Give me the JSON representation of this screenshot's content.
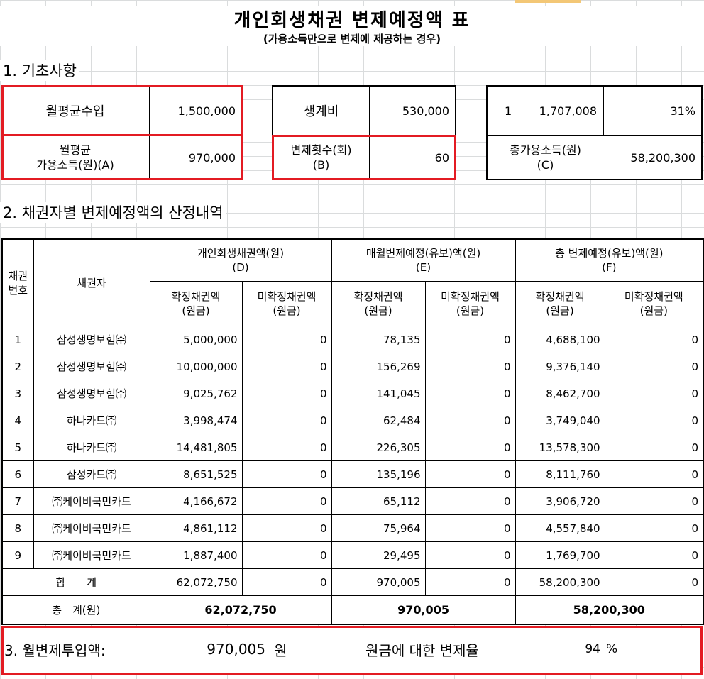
{
  "title": "개인회생채권 변제예정액 표",
  "subtitle": "(가용소득만으로 변제에 제공하는 경우)",
  "section1": {
    "heading": "1. 기초사항",
    "monthly_income_label": "월평균수입",
    "monthly_income_value": "1,500,000",
    "avg_disposable_label_1": "월평균",
    "avg_disposable_label_2": "가용소득(원)(A)",
    "avg_disposable_value": "970,000",
    "living_cost_label": "생계비",
    "living_cost_value": "530,000",
    "repay_count_label_1": "변제횟수(회)",
    "repay_count_label_2": "(B)",
    "repay_count_value": "60",
    "ratio_index": "1",
    "ratio_amount": "1,707,008",
    "ratio_percent": "31%",
    "total_disposable_label_1": "총가용소득(원)",
    "total_disposable_label_2": "(C)",
    "total_disposable_value": "58,200,300"
  },
  "section2": {
    "heading": "2. 채권자별 변제예정액의 산정내역",
    "headers": {
      "no_1": "채권",
      "no_2": "번호",
      "creditor": "채권자",
      "group_d_1": "개인회생채권액(원)",
      "group_d_2": "(D)",
      "group_e_1": "매월변제예정(유보)액(원)",
      "group_e_2": "(E)",
      "group_f_1": "총 변제예정(유보)액(원)",
      "group_f_2": "(F)",
      "confirmed_1": "확정채권액",
      "confirmed_2": "(원금)",
      "unconfirmed_1": "미확정채권액",
      "unconfirmed_2": "(원금)"
    },
    "rows": [
      {
        "no": "1",
        "creditor": "삼성생명보험㈜",
        "d1": "5,000,000",
        "d2": "0",
        "e1": "78,135",
        "e2": "0",
        "f1": "4,688,100",
        "f2": "0"
      },
      {
        "no": "2",
        "creditor": "삼성생명보험㈜",
        "d1": "10,000,000",
        "d2": "0",
        "e1": "156,269",
        "e2": "0",
        "f1": "9,376,140",
        "f2": "0"
      },
      {
        "no": "3",
        "creditor": "삼성생명보험㈜",
        "d1": "9,025,762",
        "d2": "0",
        "e1": "141,045",
        "e2": "0",
        "f1": "8,462,700",
        "f2": "0"
      },
      {
        "no": "4",
        "creditor": "하나카드㈜",
        "d1": "3,998,474",
        "d2": "0",
        "e1": "62,484",
        "e2": "0",
        "f1": "3,749,040",
        "f2": "0"
      },
      {
        "no": "5",
        "creditor": "하나카드㈜",
        "d1": "14,481,805",
        "d2": "0",
        "e1": "226,305",
        "e2": "0",
        "f1": "13,578,300",
        "f2": "0"
      },
      {
        "no": "6",
        "creditor": "삼성카드㈜",
        "d1": "8,651,525",
        "d2": "0",
        "e1": "135,196",
        "e2": "0",
        "f1": "8,111,760",
        "f2": "0"
      },
      {
        "no": "7",
        "creditor": "㈜케이비국민카드",
        "d1": "4,166,672",
        "d2": "0",
        "e1": "65,112",
        "e2": "0",
        "f1": "3,906,720",
        "f2": "0"
      },
      {
        "no": "8",
        "creditor": "㈜케이비국민카드",
        "d1": "4,861,112",
        "d2": "0",
        "e1": "75,964",
        "e2": "0",
        "f1": "4,557,840",
        "f2": "0"
      },
      {
        "no": "9",
        "creditor": "㈜케이비국민카드",
        "d1": "1,887,400",
        "d2": "0",
        "e1": "29,495",
        "e2": "0",
        "f1": "1,769,700",
        "f2": "0"
      }
    ],
    "subtotal": {
      "label": "합　　계",
      "d1": "62,072,750",
      "d2": "0",
      "e1": "970,005",
      "e2": "0",
      "f1": "58,200,300",
      "f2": "0"
    },
    "grand_total": {
      "label": "총　계(원)",
      "d": "62,072,750",
      "e": "970,005",
      "f": "58,200,300"
    }
  },
  "section3": {
    "heading": "3. 월변제투입액:",
    "amount": "970,005",
    "unit": "원",
    "rate_label": "원금에 대한 변제율",
    "rate_value": "94",
    "rate_unit": "%"
  },
  "colors": {
    "highlight_border": "#e31b23",
    "gridline": "#dadcdd",
    "selected_column_tab": "#f3c776"
  }
}
